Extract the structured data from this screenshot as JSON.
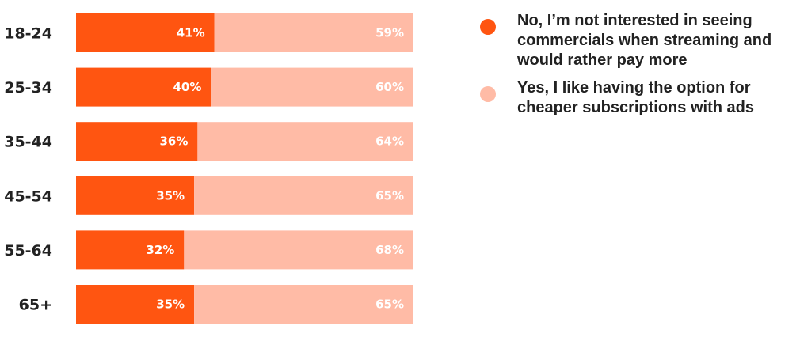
{
  "chart_data": {
    "type": "bar",
    "orientation": "horizontal",
    "stacked": true,
    "percent_stacked": true,
    "categories": [
      "18-24",
      "25-34",
      "35-44",
      "45-54",
      "55-64",
      "65+"
    ],
    "series": [
      {
        "name": "No, I’m not interested in seeing commercials when streaming and would rather pay more",
        "values": [
          41,
          40,
          36,
          35,
          32,
          35
        ],
        "labels": [
          "41%",
          "40%",
          "36%",
          "35%",
          "32%",
          "35%"
        ],
        "color": "#FF5511"
      },
      {
        "name": "Yes, I like having the option for cheaper subscriptions with ads",
        "values": [
          59,
          60,
          64,
          65,
          68,
          65
        ],
        "labels": [
          "59%",
          "60%",
          "64%",
          "65%",
          "68%",
          "65%"
        ],
        "color": "#FFBBA6"
      }
    ],
    "xlim": [
      0,
      100
    ],
    "grid": false,
    "legend_position": "right"
  },
  "legend": {
    "items": [
      {
        "label": "No, I’m not interested in seeing commercials when streaming and would rather pay more",
        "color": "#FF5511"
      },
      {
        "label": "Yes, I like having the option for cheaper subscriptions with ads",
        "color": "#FFBBA6"
      }
    ]
  }
}
